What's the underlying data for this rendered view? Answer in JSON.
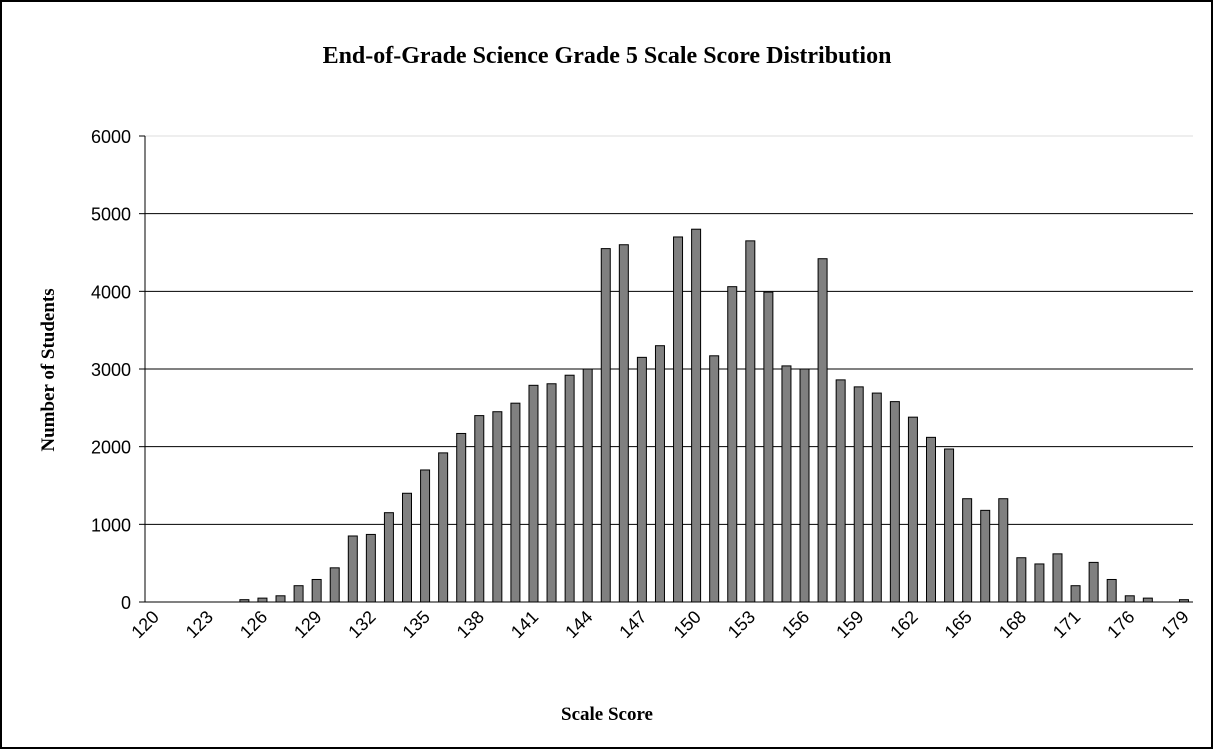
{
  "chart_data": {
    "type": "bar",
    "title": "End-of-Grade Science Grade 5 Scale Score Distribution",
    "x_label": "Scale Score",
    "y_label": "Number of Students",
    "categories": [
      "120",
      null,
      null,
      "123",
      null,
      null,
      "126",
      null,
      null,
      "129",
      null,
      null,
      "132",
      null,
      null,
      "135",
      null,
      null,
      "138",
      null,
      null,
      "141",
      null,
      null,
      "144",
      null,
      null,
      "147",
      null,
      null,
      "150",
      null,
      null,
      "153",
      null,
      null,
      "156",
      null,
      null,
      "159",
      null,
      null,
      "162",
      null,
      null,
      "165",
      null,
      null,
      "168",
      null,
      null,
      "171",
      null,
      null,
      "176",
      null,
      null,
      "179"
    ],
    "values": [
      0,
      0,
      0,
      0,
      0,
      30,
      50,
      80,
      210,
      290,
      440,
      850,
      870,
      1150,
      1400,
      1700,
      1920,
      2170,
      2400,
      2450,
      2560,
      2790,
      2810,
      2920,
      3000,
      4550,
      4600,
      3150,
      3300,
      4700,
      4800,
      3170,
      4060,
      4650,
      3990,
      3040,
      3000,
      4420,
      2860,
      2770,
      2690,
      2580,
      2380,
      2120,
      1970,
      1330,
      1180,
      1330,
      570,
      490,
      620,
      210,
      510,
      290,
      80,
      50,
      0,
      30
    ],
    "color": "#808080",
    "ylim": [
      0,
      6000
    ],
    "yticks": [
      0,
      1000,
      2000,
      3000,
      4000,
      5000,
      6000
    ],
    "grid": true
  }
}
